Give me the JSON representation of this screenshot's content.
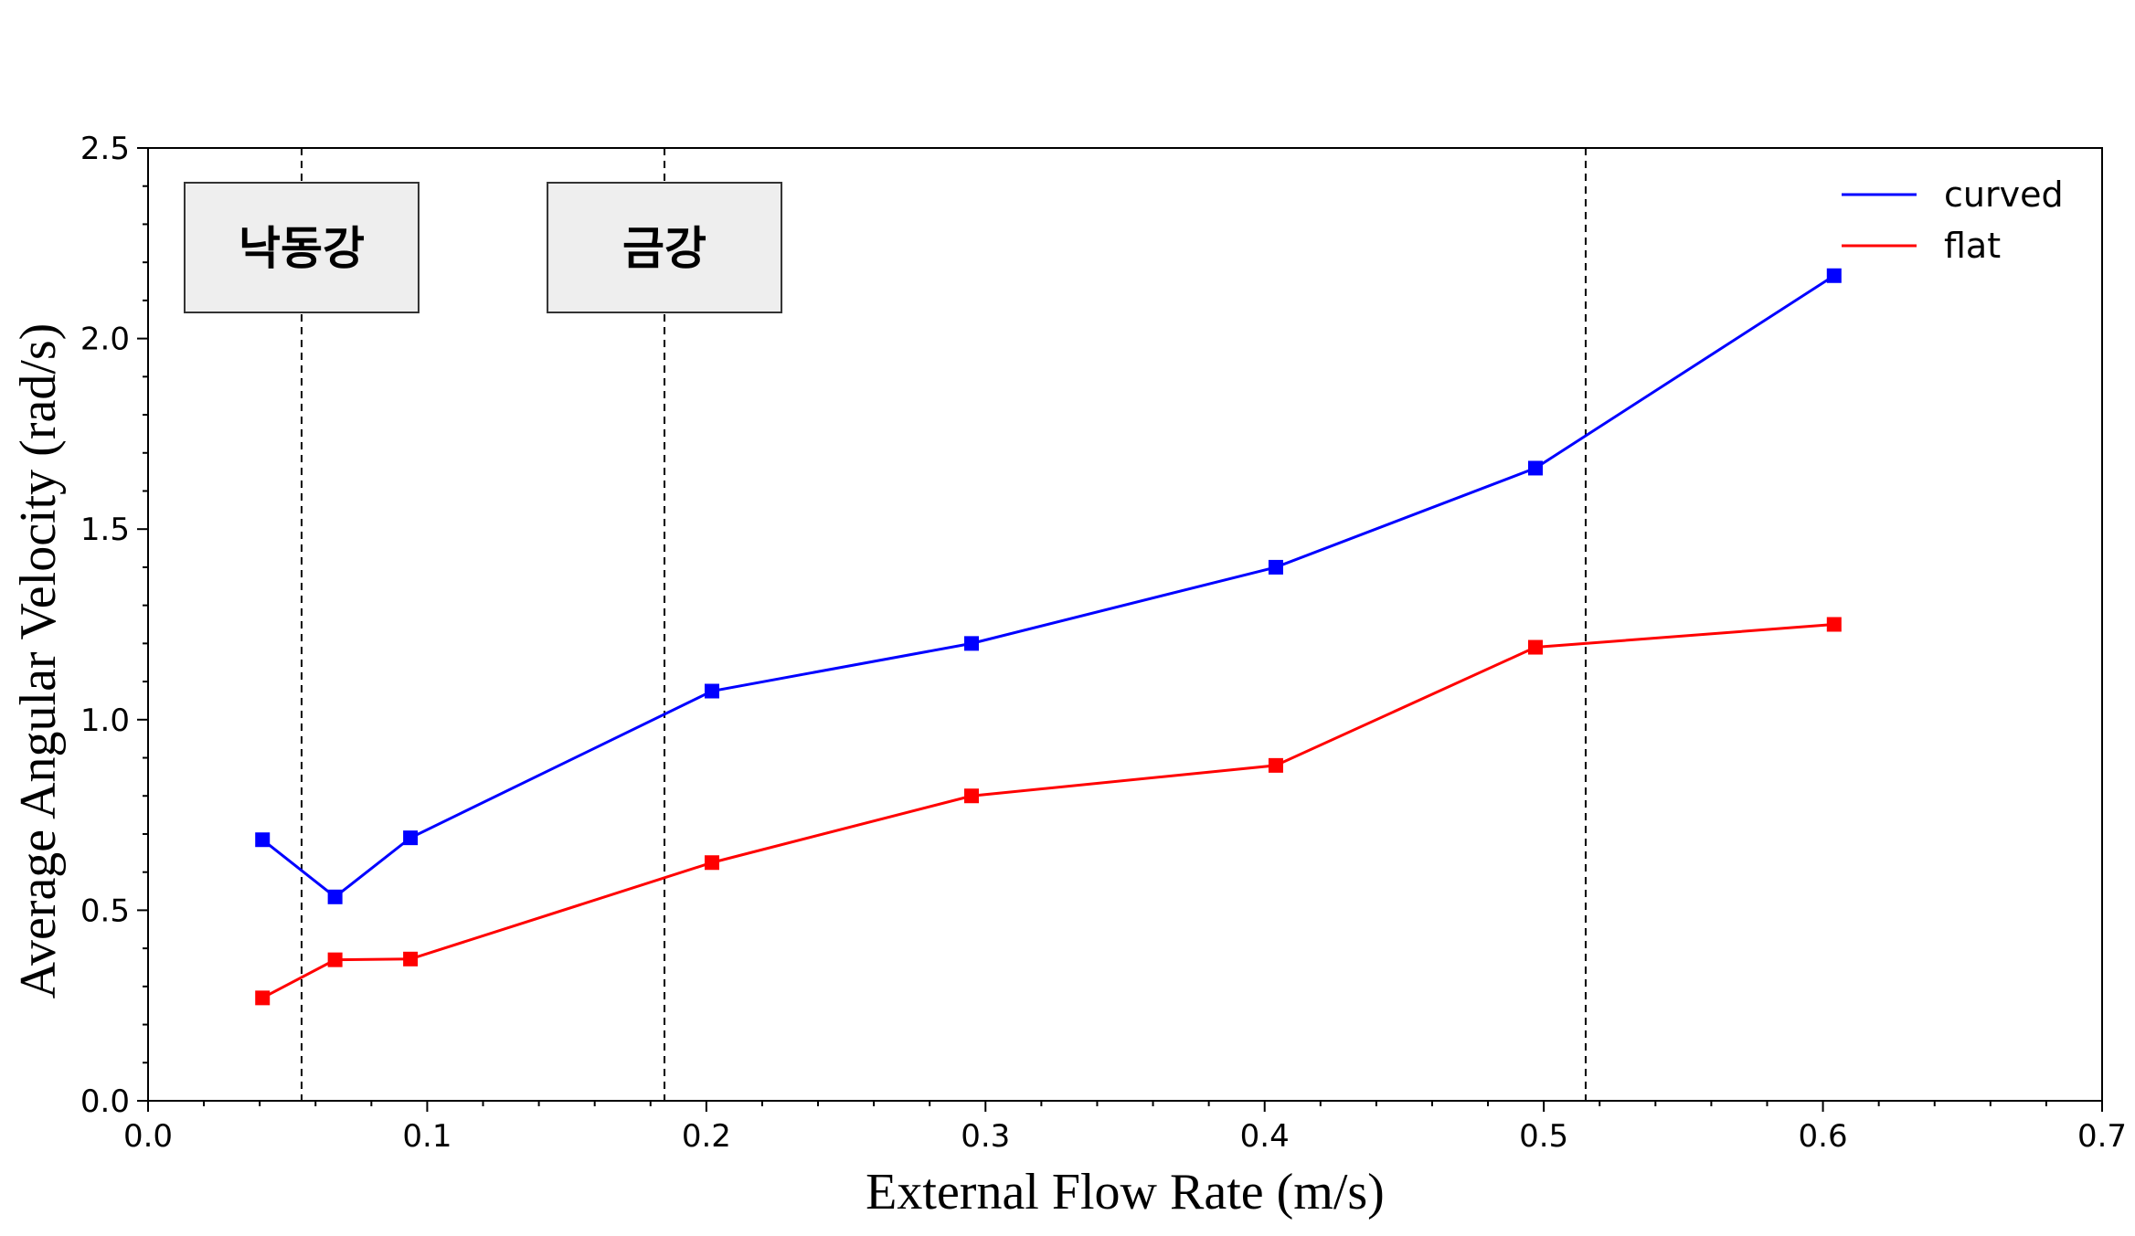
{
  "chart_data": {
    "type": "line",
    "xlabel": "External Flow Rate (m/s)",
    "ylabel": "Average Angular Velocity (rad/s)",
    "xlim": [
      0.0,
      0.7
    ],
    "ylim": [
      0.0,
      2.5
    ],
    "x_ticks": [
      "0.0",
      "0.1",
      "0.2",
      "0.3",
      "0.4",
      "0.5",
      "0.6",
      "0.7"
    ],
    "y_ticks": [
      "0.0",
      "0.5",
      "1.0",
      "1.5",
      "2.0",
      "2.5"
    ],
    "grid": false,
    "legend_position": "top-right",
    "series": [
      {
        "name": "curved",
        "color": "#0000ff",
        "marker": "square",
        "x": [
          0.041,
          0.067,
          0.094,
          0.202,
          0.295,
          0.404,
          0.497,
          0.604
        ],
        "y": [
          0.685,
          0.535,
          0.69,
          1.075,
          1.2,
          1.4,
          1.66,
          2.165
        ]
      },
      {
        "name": "flat",
        "color": "#ff0000",
        "marker": "square",
        "x": [
          0.041,
          0.067,
          0.094,
          0.202,
          0.295,
          0.404,
          0.497,
          0.604
        ],
        "y": [
          0.27,
          0.37,
          0.372,
          0.625,
          0.8,
          0.88,
          1.19,
          1.25
        ]
      }
    ],
    "vertical_lines": [
      {
        "x": 0.055,
        "style": "dashed"
      },
      {
        "x": 0.185,
        "style": "dashed"
      },
      {
        "x": 0.515,
        "style": "dashed"
      }
    ],
    "annotations": [
      {
        "text": "낙동강",
        "x": 0.055
      },
      {
        "text": "금강",
        "x": 0.185
      }
    ],
    "box_fill": "#eeeeee"
  }
}
